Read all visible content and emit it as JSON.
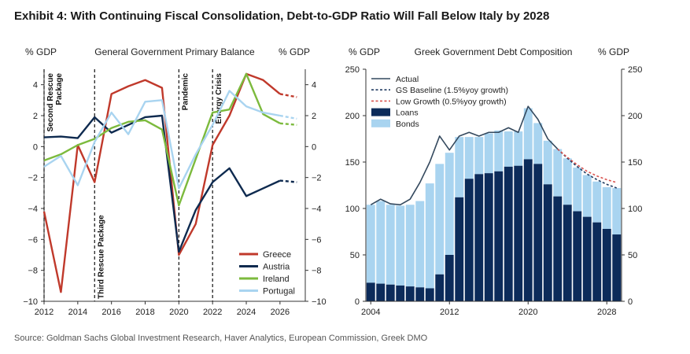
{
  "title": "Exhibit 4: With Continuing Fiscal Consolidation, Debt-to-GDP Ratio Will Fall Below Italy by 2028",
  "source": "Source: Goldman Sachs Global Investment Research, Haver Analytics, European Commission, Greek DMO",
  "chart_data": [
    {
      "type": "line",
      "title": "General Government Primary Balance",
      "ylabel_left": "% GDP",
      "ylabel_right": "% GDP",
      "ylim": [
        -10,
        5
      ],
      "xlim": [
        2012,
        2027.5
      ],
      "yticks": [
        "−10",
        "−8",
        "−6",
        "−4",
        "−2",
        "0",
        "2",
        "4"
      ],
      "ytick_values": [
        -10,
        -8,
        -6,
        -4,
        -2,
        0,
        2,
        4
      ],
      "xticks": [
        "2012",
        "2014",
        "2016",
        "2018",
        "2020",
        "2022",
        "2024",
        "2026"
      ],
      "xtick_values": [
        2012,
        2014,
        2016,
        2018,
        2020,
        2022,
        2024,
        2026
      ],
      "events": [
        {
          "x": 2012,
          "label": "Second Rescue Package",
          "anchor": "top"
        },
        {
          "x": 2015,
          "label": "Third Rescue Package",
          "anchor": "bottom"
        },
        {
          "x": 2020,
          "label": "Pandemic",
          "anchor": "top"
        },
        {
          "x": 2022,
          "label": "Energy Crisis",
          "anchor": "top"
        }
      ],
      "series": [
        {
          "name": "Greece",
          "color": "#c0392b",
          "actual": {
            "x": [
              2012,
              2013,
              2014,
              2015,
              2016,
              2017,
              2018,
              2019,
              2020,
              2021,
              2022,
              2023,
              2024,
              2025,
              2026
            ],
            "y": [
              -4.2,
              -9.4,
              0.1,
              -2.3,
              3.4,
              3.9,
              4.3,
              3.8,
              -7.0,
              -5.0,
              0.1,
              2.0,
              4.7,
              4.3,
              3.4
            ]
          },
          "forecast": {
            "x": [
              2026,
              2027
            ],
            "y": [
              3.4,
              3.2
            ]
          }
        },
        {
          "name": "Austria",
          "color": "#0e2a4f",
          "actual": {
            "x": [
              2012,
              2013,
              2014,
              2015,
              2016,
              2017,
              2018,
              2019,
              2020,
              2021,
              2022,
              2023,
              2024,
              2025,
              2026
            ],
            "y": [
              0.6,
              0.65,
              0.55,
              1.9,
              0.9,
              1.4,
              1.9,
              2.0,
              -6.8,
              -4.1,
              -2.3,
              -1.4,
              -3.2,
              -2.7,
              -2.2
            ]
          },
          "forecast": {
            "x": [
              2026,
              2027
            ],
            "y": [
              -2.2,
              -2.3
            ]
          }
        },
        {
          "name": "Ireland",
          "color": "#7cba3d",
          "actual": {
            "x": [
              2012,
              2013,
              2014,
              2015,
              2016,
              2017,
              2018,
              2019,
              2020,
              2021,
              2022,
              2023,
              2024,
              2025,
              2026
            ],
            "y": [
              -0.9,
              -0.5,
              0.1,
              0.5,
              1.2,
              1.6,
              1.7,
              1.1,
              -3.8,
              -0.8,
              2.2,
              2.4,
              4.7,
              2.1,
              1.5
            ]
          },
          "forecast": {
            "x": [
              2026,
              2027
            ],
            "y": [
              1.5,
              1.4
            ]
          }
        },
        {
          "name": "Portugal",
          "color": "#a9d4f0",
          "actual": {
            "x": [
              2012,
              2013,
              2014,
              2015,
              2016,
              2017,
              2018,
              2019,
              2020,
              2021,
              2022,
              2023,
              2024,
              2025,
              2026
            ],
            "y": [
              -1.3,
              -0.6,
              -2.5,
              0.3,
              2.2,
              0.8,
              2.9,
              3.0,
              -2.7,
              -0.5,
              1.4,
              3.6,
              2.6,
              2.2,
              2.0
            ]
          },
          "forecast": {
            "x": [
              2026,
              2027
            ],
            "y": [
              2.0,
              1.8
            ]
          }
        }
      ],
      "legend": "bottom-right"
    },
    {
      "type": "bar",
      "title": "Greek Government Debt Composition",
      "ylabel_left": "% GDP",
      "ylabel_right": "% GDP",
      "ylim": [
        0,
        250
      ],
      "yticks": [
        "0",
        "50",
        "100",
        "150",
        "200",
        "250"
      ],
      "ytick_values": [
        0,
        50,
        100,
        150,
        200,
        250
      ],
      "xticks": [
        "2004",
        "2012",
        "2020",
        "2028"
      ],
      "xtick_values": [
        2004,
        2012,
        2020,
        2028
      ],
      "categories": [
        2004,
        2005,
        2006,
        2007,
        2008,
        2009,
        2010,
        2011,
        2012,
        2013,
        2014,
        2015,
        2016,
        2017,
        2018,
        2019,
        2020,
        2021,
        2022,
        2023,
        2024,
        2025,
        2026,
        2027,
        2028,
        2029
      ],
      "series": [
        {
          "name": "Loans",
          "color": "#0c2b5a",
          "values": [
            20,
            19,
            18,
            17,
            16,
            15,
            14,
            29,
            50,
            112,
            132,
            137,
            138,
            140,
            145,
            146,
            153,
            148,
            126,
            113,
            104,
            97,
            91,
            85,
            78,
            72
          ]
        },
        {
          "name": "Bonds",
          "color": "#a9d4f0",
          "values": [
            84,
            89,
            86,
            86,
            88,
            93,
            113,
            119,
            110,
            65,
            45,
            40,
            43,
            44,
            38,
            37,
            55,
            44,
            47,
            51,
            50,
            47,
            45,
            44,
            45,
            50
          ]
        }
      ],
      "lines": [
        {
          "name": "Actual",
          "color": "#34495e",
          "style": "solid",
          "x": [
            2004,
            2005,
            2006,
            2007,
            2008,
            2009,
            2010,
            2011,
            2012,
            2013,
            2014,
            2015,
            2016,
            2017,
            2018,
            2019,
            2020,
            2021,
            2022,
            2023
          ],
          "y": [
            104,
            110,
            105,
            104,
            110,
            128,
            150,
            178,
            163,
            178,
            182,
            178,
            182,
            182,
            187,
            182,
            210,
            196,
            175,
            164
          ]
        },
        {
          "name": "GS Baseline (1.5%yoy growth)",
          "color": "#1f3a60",
          "style": "dashed",
          "x": [
            2023,
            2024,
            2025,
            2026,
            2027,
            2028,
            2029
          ],
          "y": [
            164,
            154,
            145,
            137,
            131,
            126,
            122
          ]
        },
        {
          "name": "Low Growth (0.5%yoy growth)",
          "color": "#d9534f",
          "style": "dashed",
          "x": [
            2023,
            2024,
            2025,
            2026,
            2027,
            2028,
            2029
          ],
          "y": [
            164,
            155,
            147,
            140,
            135,
            131,
            128
          ]
        }
      ],
      "legend": "top-left"
    }
  ]
}
